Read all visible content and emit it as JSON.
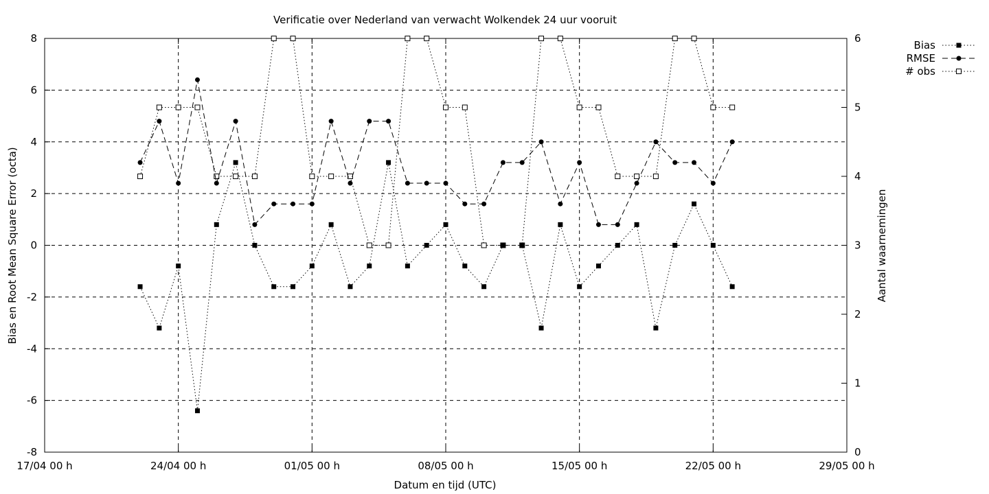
{
  "chart_data": {
    "type": "line",
    "title": "Verificatie over Nederland van verwacht Wolkendek 24 uur vooruit",
    "xlabel": "Datum en tijd (UTC)",
    "ylabel": "Bias en Root Mean Square Error (octa)",
    "y2label": "Aantal waarnemingen",
    "grid": true,
    "legend_position": "top-right outside",
    "x_unit": "days",
    "x_range": [
      0,
      42
    ],
    "x_ticks": [
      {
        "x": 0,
        "label": "17/04 00 h"
      },
      {
        "x": 7,
        "label": "24/04 00 h"
      },
      {
        "x": 14,
        "label": "01/05 00 h"
      },
      {
        "x": 21,
        "label": "08/05 00 h"
      },
      {
        "x": 28,
        "label": "15/05 00 h"
      },
      {
        "x": 35,
        "label": "22/05 00 h"
      },
      {
        "x": 42,
        "label": "29/05 00 h"
      }
    ],
    "y_range": [
      -8,
      8
    ],
    "y_ticks": [
      -8,
      -6,
      -4,
      -2,
      0,
      2,
      4,
      6,
      8
    ],
    "y2_range": [
      0,
      6
    ],
    "y2_ticks": [
      0,
      1,
      2,
      3,
      4,
      5,
      6
    ],
    "x": [
      5,
      6,
      7,
      8,
      9,
      10,
      11,
      12,
      13,
      14,
      15,
      16,
      17,
      18,
      19,
      20,
      21,
      22,
      23,
      24,
      25,
      26,
      27,
      28,
      29,
      30,
      31,
      32,
      33,
      34,
      35,
      36
    ],
    "series": [
      {
        "name": "Bias",
        "axis": "y",
        "style": "dotted",
        "marker": "filled-square",
        "values": [
          -1.6,
          -3.2,
          -0.8,
          -6.4,
          0.8,
          3.2,
          0,
          -1.6,
          -1.6,
          -0.8,
          0.8,
          -1.6,
          -0.8,
          3.2,
          -0.8,
          0,
          0.8,
          -0.8,
          -1.6,
          0,
          0,
          -3.2,
          0.8,
          -1.6,
          -0.8,
          0,
          0.8,
          -3.2,
          0,
          1.6,
          0,
          -1.6
        ]
      },
      {
        "name": "RMSE",
        "axis": "y",
        "style": "dashed",
        "marker": "filled-circle",
        "values": [
          3.2,
          4.8,
          2.4,
          6.4,
          2.4,
          4.8,
          0.8,
          1.6,
          1.6,
          1.6,
          4.8,
          2.4,
          4.8,
          4.8,
          2.4,
          2.4,
          2.4,
          1.6,
          1.6,
          3.2,
          3.2,
          4.0,
          1.6,
          3.2,
          0.8,
          0.8,
          2.4,
          4.0,
          3.2,
          3.2,
          2.4,
          4.0
        ]
      },
      {
        "name": "# obs",
        "axis": "y2",
        "style": "dotted",
        "marker": "open-square",
        "values": [
          4,
          5,
          5,
          5,
          4,
          4,
          4,
          6,
          6,
          4,
          4,
          4,
          3,
          3,
          6,
          6,
          5,
          5,
          3,
          3,
          3,
          6,
          6,
          5,
          5,
          4,
          4,
          4,
          6,
          6,
          5,
          5
        ]
      }
    ]
  }
}
